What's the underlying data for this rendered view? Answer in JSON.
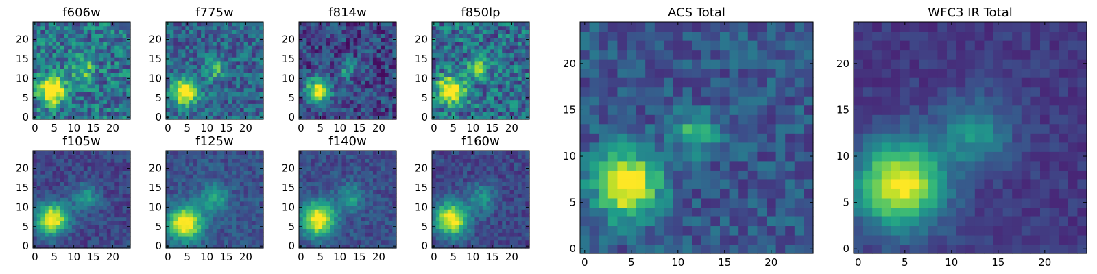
{
  "figure": {
    "background": "#ffffff",
    "colormap": "viridis"
  },
  "chart_data": [
    {
      "type": "heatmap",
      "title": "f606w",
      "xticks": [
        0,
        5,
        10,
        15,
        20
      ],
      "yticks": [
        0,
        5,
        10,
        15,
        20
      ],
      "xlim": [
        0,
        25
      ],
      "ylim": [
        0,
        25
      ],
      "grid": false,
      "pixels": 25,
      "sources": [
        {
          "x": 4.5,
          "y": 7.0,
          "peak": 1.0,
          "sigma": 2.4
        },
        {
          "x": 12.5,
          "y": 12.5,
          "peak": 0.45,
          "sigma": 2.0
        }
      ],
      "background": 0.45,
      "noise": 0.28
    },
    {
      "type": "heatmap",
      "title": "f775w",
      "xticks": [
        0,
        5,
        10,
        15,
        20
      ],
      "yticks": [
        0,
        5,
        10,
        15,
        20
      ],
      "xlim": [
        0,
        25
      ],
      "ylim": [
        0,
        25
      ],
      "grid": false,
      "pixels": 25,
      "sources": [
        {
          "x": 4.5,
          "y": 6.5,
          "peak": 1.0,
          "sigma": 2.3
        },
        {
          "x": 12.0,
          "y": 12.5,
          "peak": 0.45,
          "sigma": 1.8
        }
      ],
      "background": 0.38,
      "noise": 0.22
    },
    {
      "type": "heatmap",
      "title": "f814w",
      "xticks": [
        0,
        5,
        10,
        15,
        20
      ],
      "yticks": [
        0,
        5,
        10,
        15,
        20
      ],
      "xlim": [
        0,
        25
      ],
      "ylim": [
        0,
        25
      ],
      "grid": false,
      "pixels": 25,
      "sources": [
        {
          "x": 4.5,
          "y": 7.0,
          "peak": 1.0,
          "sigma": 2.1
        },
        {
          "x": 12.0,
          "y": 12.5,
          "peak": 0.4,
          "sigma": 1.7
        }
      ],
      "background": 0.25,
      "noise": 0.22
    },
    {
      "type": "heatmap",
      "title": "f850lp",
      "xticks": [
        0,
        5,
        10,
        15,
        20
      ],
      "yticks": [
        0,
        5,
        10,
        15,
        20
      ],
      "xlim": [
        0,
        25
      ],
      "ylim": [
        0,
        25
      ],
      "grid": false,
      "pixels": 25,
      "sources": [
        {
          "x": 4.5,
          "y": 7.0,
          "peak": 1.0,
          "sigma": 2.4
        },
        {
          "x": 11.5,
          "y": 12.5,
          "peak": 0.45,
          "sigma": 2.0
        }
      ],
      "background": 0.42,
      "noise": 0.28
    },
    {
      "type": "heatmap",
      "title": "f105w",
      "xticks": [
        0,
        5,
        10,
        15,
        20
      ],
      "yticks": [
        0,
        5,
        10,
        15,
        20
      ],
      "xlim": [
        0,
        25
      ],
      "ylim": [
        0,
        25
      ],
      "grid": false,
      "pixels": 25,
      "sources": [
        {
          "x": 4.5,
          "y": 7.0,
          "peak": 1.0,
          "sigma": 2.8
        },
        {
          "x": 13.0,
          "y": 12.5,
          "peak": 0.38,
          "sigma": 2.4
        }
      ],
      "background": 0.25,
      "noise": 0.12
    },
    {
      "type": "heatmap",
      "title": "f125w",
      "xticks": [
        0,
        5,
        10,
        15,
        20
      ],
      "yticks": [
        0,
        5,
        10,
        15,
        20
      ],
      "xlim": [
        0,
        25
      ],
      "ylim": [
        0,
        25
      ],
      "grid": false,
      "pixels": 25,
      "sources": [
        {
          "x": 4.5,
          "y": 6.0,
          "peak": 1.0,
          "sigma": 3.0
        },
        {
          "x": 12.0,
          "y": 12.5,
          "peak": 0.42,
          "sigma": 2.4
        }
      ],
      "background": 0.3,
      "noise": 0.12
    },
    {
      "type": "heatmap",
      "title": "f140w",
      "xticks": [
        0,
        5,
        10,
        15,
        20
      ],
      "yticks": [
        0,
        5,
        10,
        15,
        20
      ],
      "xlim": [
        0,
        25
      ],
      "ylim": [
        0,
        25
      ],
      "grid": false,
      "pixels": 25,
      "sources": [
        {
          "x": 4.5,
          "y": 7.0,
          "peak": 1.0,
          "sigma": 3.0
        },
        {
          "x": 13.0,
          "y": 12.5,
          "peak": 0.35,
          "sigma": 2.4
        }
      ],
      "background": 0.28,
      "noise": 0.12
    },
    {
      "type": "heatmap",
      "title": "f160w",
      "xticks": [
        0,
        5,
        10,
        15,
        20
      ],
      "yticks": [
        0,
        5,
        10,
        15,
        20
      ],
      "xlim": [
        0,
        25
      ],
      "ylim": [
        0,
        25
      ],
      "grid": false,
      "pixels": 25,
      "sources": [
        {
          "x": 4.5,
          "y": 7.0,
          "peak": 1.0,
          "sigma": 3.0
        },
        {
          "x": 12.5,
          "y": 12.5,
          "peak": 0.35,
          "sigma": 2.5
        }
      ],
      "background": 0.25,
      "noise": 0.12
    },
    {
      "type": "heatmap",
      "title": "ACS Total",
      "xticks": [
        0,
        5,
        10,
        15,
        20
      ],
      "yticks": [
        0,
        5,
        10,
        15,
        20
      ],
      "xlim": [
        0,
        25
      ],
      "ylim": [
        0,
        25
      ],
      "grid": false,
      "pixels": 25,
      "sources": [
        {
          "x": 4.5,
          "y": 7.0,
          "peak": 1.0,
          "sigma": 2.4
        },
        {
          "x": 12.0,
          "y": 12.5,
          "peak": 0.5,
          "sigma": 1.5
        }
      ],
      "background": 0.32,
      "noise": 0.16
    },
    {
      "type": "heatmap",
      "title": "WFC3 IR Total",
      "xticks": [
        0,
        5,
        10,
        15,
        20
      ],
      "yticks": [
        0,
        5,
        10,
        15,
        20
      ],
      "xlim": [
        0,
        25
      ],
      "ylim": [
        0,
        25
      ],
      "grid": false,
      "pixels": 25,
      "sources": [
        {
          "x": 4.5,
          "y": 7.0,
          "peak": 1.0,
          "sigma": 3.2
        },
        {
          "x": 12.5,
          "y": 12.5,
          "peak": 0.4,
          "sigma": 2.6
        }
      ],
      "background": 0.2,
      "noise": 0.08
    }
  ]
}
